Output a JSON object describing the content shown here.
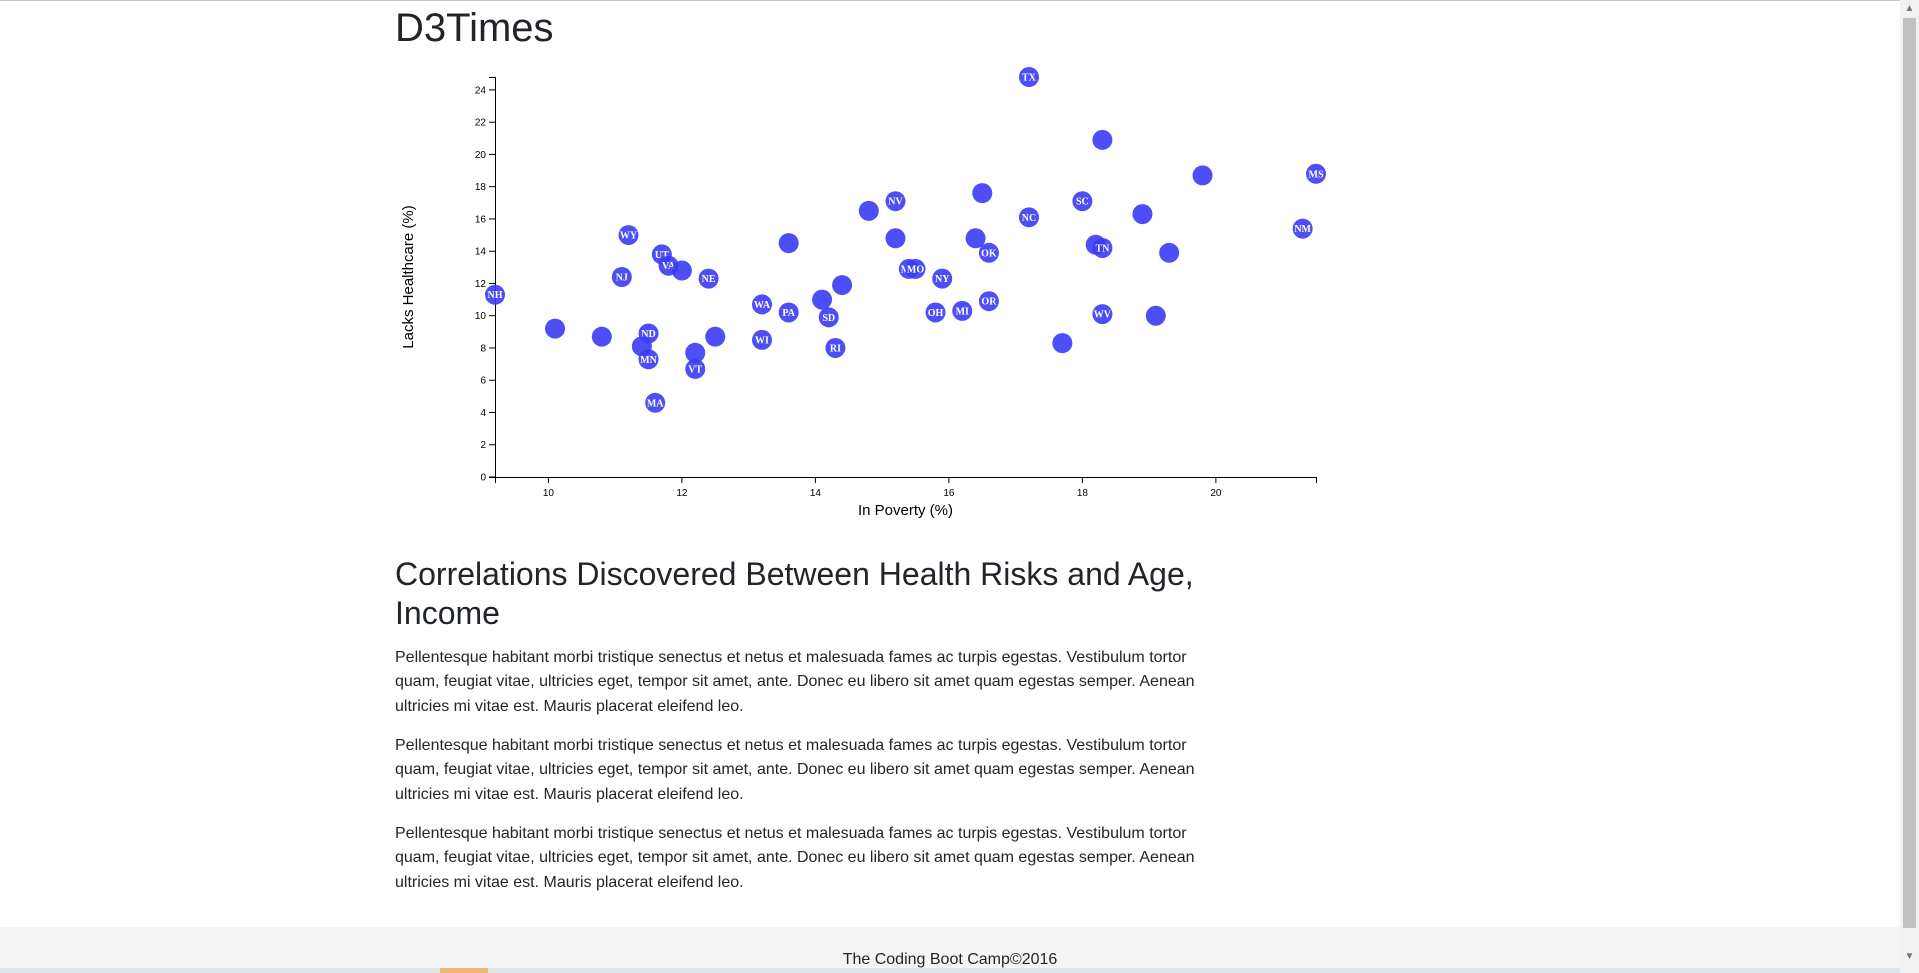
{
  "site_title": "D3Times",
  "article": {
    "title": "Correlations Discovered Between Health Risks and Age, Income",
    "paragraphs": [
      "Pellentesque habitant morbi tristique senectus et netus et malesuada fames ac turpis egestas. Vestibulum tortor quam, feugiat vitae, ultricies eget, tempor sit amet, ante. Donec eu libero sit amet quam egestas semper. Aenean ultricies mi vitae est. Mauris placerat eleifend leo.",
      "Pellentesque habitant morbi tristique senectus et netus et malesuada fames ac turpis egestas. Vestibulum tortor quam, feugiat vitae, ultricies eget, tempor sit amet, ante. Donec eu libero sit amet quam egestas semper. Aenean ultricies mi vitae est. Mauris placerat eleifend leo.",
      "Pellentesque habitant morbi tristique senectus et netus et malesuada fames ac turpis egestas. Vestibulum tortor quam, feugiat vitae, ultricies eget, tempor sit amet, ante. Donec eu libero sit amet quam egestas semper. Aenean ultricies mi vitae est. Mauris placerat eleifend leo."
    ]
  },
  "footer": {
    "text": "The Coding Boot Camp©2016"
  },
  "colors": {
    "point": "#3b3bf5",
    "accent_bar": "#f0b477"
  },
  "chart_data": {
    "type": "scatter",
    "title": "",
    "xlabel": "In Poverty (%)",
    "ylabel": "Lacks Healthcare (%)",
    "xlim": [
      9.2,
      21.5
    ],
    "ylim": [
      0,
      24.8
    ],
    "xticks": [
      10,
      12,
      14,
      16,
      18,
      20
    ],
    "yticks": [
      0,
      2,
      4,
      6,
      8,
      10,
      12,
      14,
      16,
      18,
      20,
      22,
      24
    ],
    "grid": false,
    "legend": "none",
    "points": [
      {
        "x": 17.2,
        "y": 24.8,
        "label": "TX"
      },
      {
        "x": 18.3,
        "y": 20.9,
        "label": ""
      },
      {
        "x": 21.5,
        "y": 18.8,
        "label": "MS"
      },
      {
        "x": 19.8,
        "y": 18.7,
        "label": ""
      },
      {
        "x": 16.5,
        "y": 17.6,
        "label": ""
      },
      {
        "x": 15.2,
        "y": 17.1,
        "label": "NV"
      },
      {
        "x": 18.0,
        "y": 17.1,
        "label": "SC"
      },
      {
        "x": 14.8,
        "y": 16.5,
        "label": ""
      },
      {
        "x": 18.9,
        "y": 16.3,
        "label": ""
      },
      {
        "x": 17.2,
        "y": 16.1,
        "label": "NC"
      },
      {
        "x": 21.3,
        "y": 15.4,
        "label": "NM"
      },
      {
        "x": 11.2,
        "y": 15.0,
        "label": "WY"
      },
      {
        "x": 15.2,
        "y": 14.8,
        "label": ""
      },
      {
        "x": 16.4,
        "y": 14.8,
        "label": ""
      },
      {
        "x": 13.6,
        "y": 14.5,
        "label": ""
      },
      {
        "x": 18.2,
        "y": 14.4,
        "label": ""
      },
      {
        "x": 18.3,
        "y": 14.2,
        "label": "TN"
      },
      {
        "x": 19.3,
        "y": 13.9,
        "label": ""
      },
      {
        "x": 16.6,
        "y": 13.9,
        "label": "OK"
      },
      {
        "x": 11.7,
        "y": 13.8,
        "label": "UT"
      },
      {
        "x": 11.8,
        "y": 13.1,
        "label": "VA"
      },
      {
        "x": 12.0,
        "y": 12.8,
        "label": ""
      },
      {
        "x": 15.4,
        "y": 12.9,
        "label": "MT"
      },
      {
        "x": 15.5,
        "y": 12.9,
        "label": "MO"
      },
      {
        "x": 11.1,
        "y": 12.4,
        "label": "NJ"
      },
      {
        "x": 12.4,
        "y": 12.3,
        "label": "NE"
      },
      {
        "x": 15.9,
        "y": 12.3,
        "label": "NY"
      },
      {
        "x": 14.4,
        "y": 11.9,
        "label": ""
      },
      {
        "x": 9.2,
        "y": 11.3,
        "label": "NH"
      },
      {
        "x": 14.1,
        "y": 11.0,
        "label": ""
      },
      {
        "x": 16.6,
        "y": 10.9,
        "label": "OR"
      },
      {
        "x": 13.2,
        "y": 10.7,
        "label": "WA"
      },
      {
        "x": 15.8,
        "y": 10.2,
        "label": "OH"
      },
      {
        "x": 16.2,
        "y": 10.3,
        "label": "MI"
      },
      {
        "x": 13.6,
        "y": 10.2,
        "label": "PA"
      },
      {
        "x": 18.3,
        "y": 10.1,
        "label": "WV"
      },
      {
        "x": 19.1,
        "y": 10.0,
        "label": ""
      },
      {
        "x": 14.2,
        "y": 9.9,
        "label": "SD"
      },
      {
        "x": 10.1,
        "y": 9.2,
        "label": ""
      },
      {
        "x": 11.5,
        "y": 8.9,
        "label": "ND"
      },
      {
        "x": 10.8,
        "y": 8.7,
        "label": ""
      },
      {
        "x": 12.5,
        "y": 8.7,
        "label": ""
      },
      {
        "x": 13.2,
        "y": 8.5,
        "label": "WI"
      },
      {
        "x": 17.7,
        "y": 8.3,
        "label": ""
      },
      {
        "x": 11.4,
        "y": 8.1,
        "label": ""
      },
      {
        "x": 14.3,
        "y": 8.0,
        "label": "RI"
      },
      {
        "x": 12.2,
        "y": 7.7,
        "label": ""
      },
      {
        "x": 11.5,
        "y": 7.3,
        "label": "MN"
      },
      {
        "x": 12.2,
        "y": 6.7,
        "label": "VT"
      },
      {
        "x": 11.6,
        "y": 4.6,
        "label": "MA"
      }
    ]
  }
}
